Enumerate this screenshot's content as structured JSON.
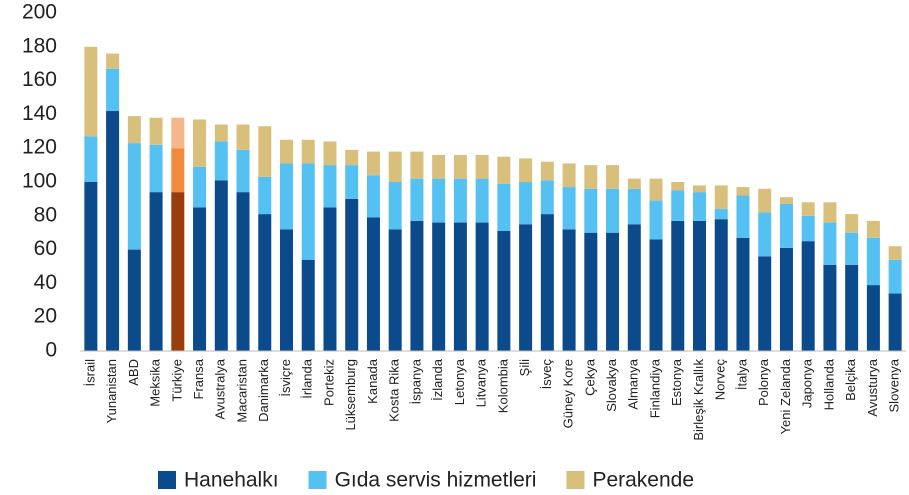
{
  "chart_data": {
    "type": "stacked_bar",
    "categories": [
      "İsrail",
      "Yunanistan",
      "ABD",
      "Meksika",
      "Türkiye",
      "Fransa",
      "Avustralya",
      "Macaristan",
      "Danimarka",
      "İsviçre",
      "İrlanda",
      "Portekiz",
      "Lüksemburg",
      "Kanada",
      "Kosta Rika",
      "İspanya",
      "İzlanda",
      "Letonya",
      "Litvanya",
      "Kolombia",
      "Şili",
      "İsveç",
      "Güney Kore",
      "Çekya",
      "Slovakya",
      "Almanya",
      "Finlandiya",
      "Estonya",
      "Birleşik Krallık",
      "Norveç",
      "İtalya",
      "Polonya",
      "Yeni Zelanda",
      "Japonya",
      "Hollanda",
      "Belçika",
      "Avusturya",
      "Slovenya"
    ],
    "series": [
      {
        "name": "Hanehalkı",
        "color": "#0b4a8b",
        "highlight_color": "#9a3c0c",
        "values": [
          100,
          142,
          60,
          94,
          94,
          85,
          101,
          94,
          81,
          72,
          54,
          85,
          90,
          79,
          72,
          77,
          76,
          76,
          76,
          71,
          75,
          81,
          72,
          70,
          70,
          75,
          66,
          77,
          77,
          78,
          67,
          56,
          61,
          65,
          51,
          51,
          39,
          34
        ]
      },
      {
        "name": "Gıda servis hizmetleri",
        "color": "#55c0f2",
        "highlight_color": "#f28a3e",
        "values": [
          27,
          25,
          63,
          28,
          26,
          24,
          23,
          25,
          22,
          39,
          57,
          25,
          20,
          25,
          28,
          25,
          26,
          26,
          26,
          28,
          25,
          20,
          25,
          26,
          26,
          21,
          23,
          18,
          17,
          6,
          25,
          26,
          26,
          15,
          25,
          19,
          28,
          20
        ]
      },
      {
        "name": "Perakende",
        "color": "#d8c07c",
        "highlight_color": "#f5b78a",
        "values": [
          53,
          9,
          16,
          16,
          18,
          28,
          10,
          15,
          30,
          14,
          14,
          14,
          9,
          14,
          18,
          16,
          14,
          14,
          14,
          16,
          14,
          11,
          14,
          14,
          14,
          6,
          13,
          5,
          4,
          14,
          5,
          14,
          4,
          8,
          12,
          11,
          10,
          8
        ]
      }
    ],
    "highlight_category": "Türkiye",
    "ylim": [
      0,
      200
    ],
    "yticks": [
      0,
      20,
      40,
      60,
      80,
      100,
      120,
      140,
      160,
      180,
      200
    ],
    "grid": false
  }
}
